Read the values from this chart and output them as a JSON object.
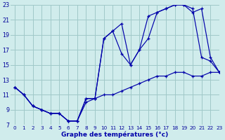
{
  "title": "Graphe des températures (°c)",
  "bg_color": "#d0ecec",
  "grid_color": "#a0c8c8",
  "line_color": "#0000aa",
  "xlim": [
    -0.5,
    23
  ],
  "ylim": [
    7,
    23
  ],
  "yticks": [
    7,
    9,
    11,
    13,
    15,
    17,
    19,
    21,
    23
  ],
  "xticks": [
    0,
    1,
    2,
    3,
    4,
    5,
    6,
    7,
    8,
    9,
    10,
    11,
    12,
    13,
    14,
    15,
    16,
    17,
    18,
    19,
    20,
    21,
    22,
    23
  ],
  "line1_x": [
    0,
    1,
    2,
    3,
    4,
    5,
    6,
    7,
    8,
    9,
    10,
    11,
    12,
    13,
    14,
    15,
    16,
    17,
    18,
    19,
    20,
    21,
    22,
    23
  ],
  "line1_y": [
    12,
    11,
    9.5,
    9,
    8.5,
    8.5,
    7.5,
    7.5,
    10.5,
    10.5,
    18.5,
    19.5,
    16.5,
    15,
    17,
    18.5,
    22,
    22.5,
    23,
    23,
    22.5,
    16,
    15.5,
    14
  ],
  "line2_x": [
    0,
    1,
    2,
    3,
    4,
    5,
    6,
    7,
    8,
    9,
    10,
    11,
    12,
    13,
    14,
    15,
    16,
    17,
    18,
    19,
    20,
    21,
    22,
    23
  ],
  "line2_y": [
    12,
    11,
    9.5,
    9,
    8.5,
    8.5,
    7.5,
    7.5,
    10.5,
    10.5,
    18.5,
    19.5,
    20.5,
    15,
    17,
    21.5,
    22,
    22.5,
    23,
    23,
    22,
    22.5,
    16,
    14
  ],
  "line3_x": [
    0,
    1,
    2,
    3,
    4,
    5,
    6,
    7,
    8,
    9,
    10,
    11,
    12,
    13,
    14,
    15,
    16,
    17,
    18,
    19,
    20,
    21,
    22,
    23
  ],
  "line3_y": [
    12,
    11,
    9.5,
    9,
    8.5,
    8.5,
    7.5,
    7.5,
    10,
    10.5,
    11,
    11,
    11.5,
    12,
    12.5,
    13,
    13.5,
    13.5,
    14,
    14,
    13.5,
    13.5,
    14,
    14
  ]
}
